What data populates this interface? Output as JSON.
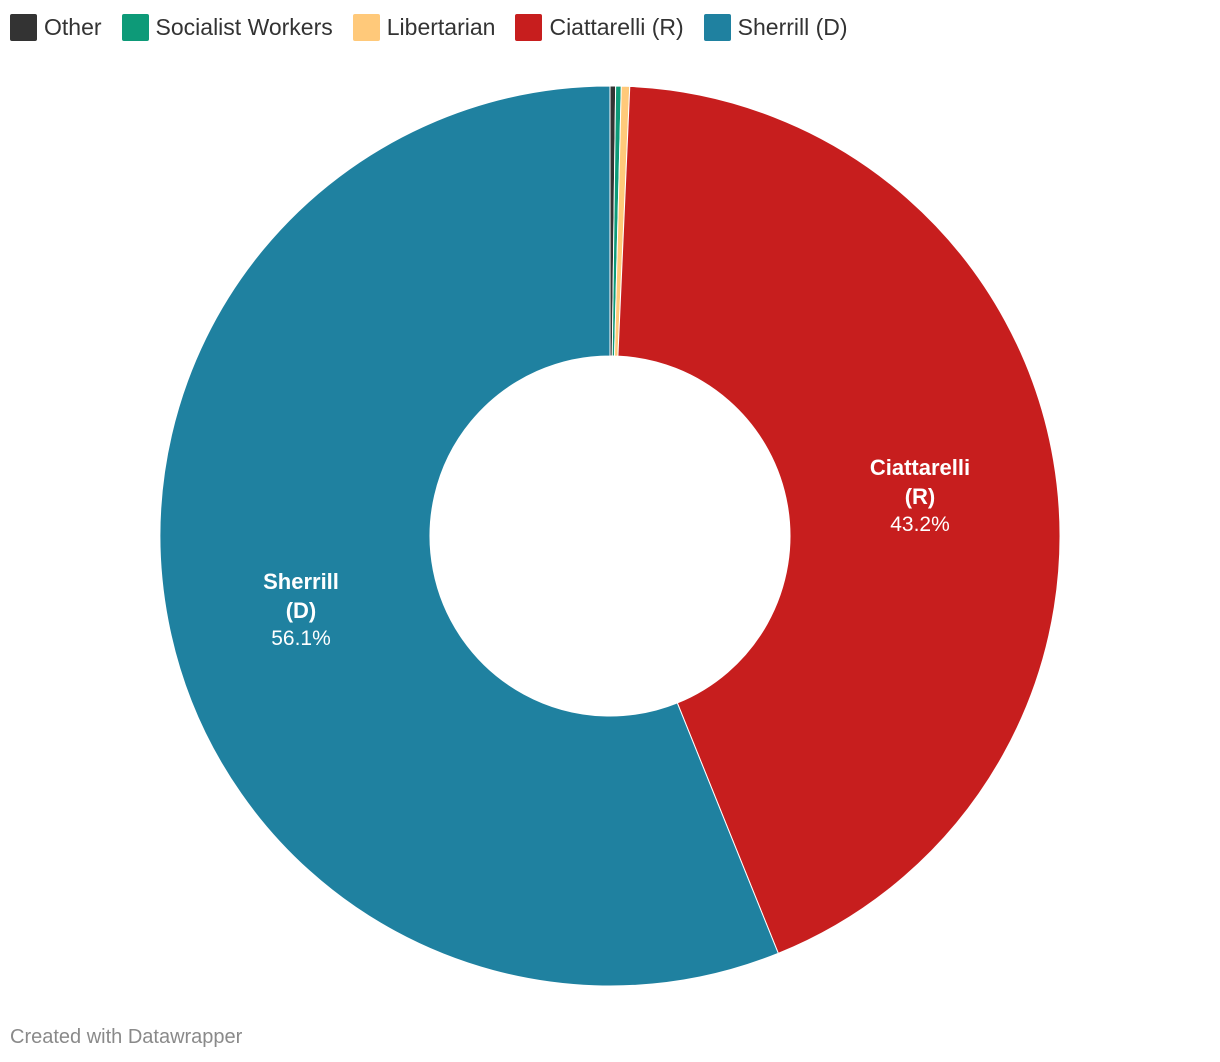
{
  "chart_data": {
    "type": "pie",
    "style": "donut",
    "categories": [
      "Other",
      "Socialist Workers",
      "Libertarian",
      "Ciattarelli (R)",
      "Sherrill (D)"
    ],
    "values": [
      0.2,
      0.2,
      0.3,
      43.2,
      56.1
    ],
    "unit": "%",
    "colors": [
      "#333333",
      "#0d9a78",
      "#ffc97a",
      "#c71e1e",
      "#1f81a0"
    ],
    "legend": {
      "position": "top-left",
      "items": [
        {
          "label": "Other",
          "color": "#333333"
        },
        {
          "label": "Socialist Workers",
          "color": "#0d9a78"
        },
        {
          "label": "Libertarian",
          "color": "#ffc97a"
        },
        {
          "label": "Ciattarelli (R)",
          "color": "#c71e1e"
        },
        {
          "label": "Sherrill (D)",
          "color": "#1f81a0"
        }
      ]
    },
    "slice_labels": [
      {
        "category": "Ciattarelli (R)",
        "name_line1": "Ciattarelli",
        "name_line2": "(R)",
        "value_text": "43.2%"
      },
      {
        "category": "Sherrill (D)",
        "name_line1": "Sherrill",
        "name_line2": "(D)",
        "value_text": "56.1%"
      }
    ]
  },
  "footer": {
    "credit": "Created with Datawrapper"
  }
}
